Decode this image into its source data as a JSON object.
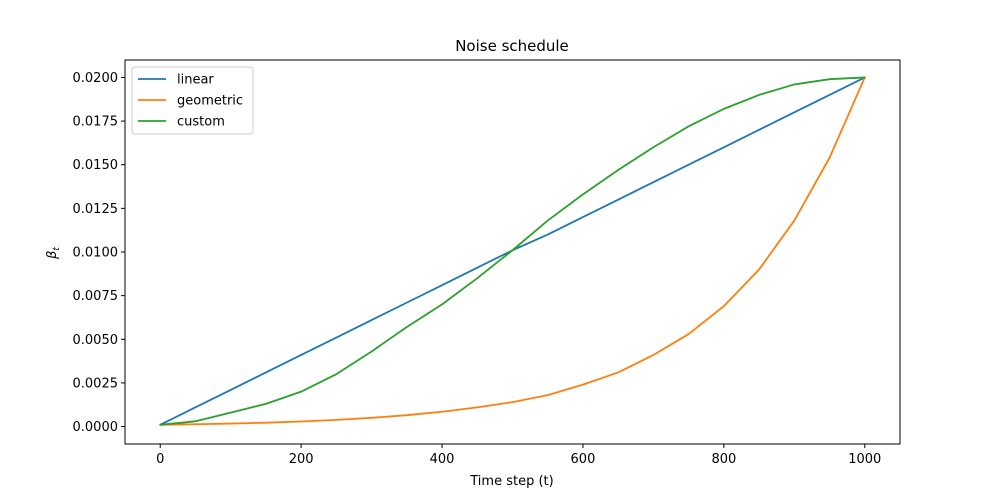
{
  "chart_data": {
    "type": "line",
    "title": "Noise schedule",
    "xlabel": "Time step (t)",
    "ylabel_base": "β",
    "ylabel_sub": "t",
    "xlim": [
      -50,
      1050
    ],
    "ylim": [
      -0.001,
      0.021
    ],
    "xticks": [
      0,
      200,
      400,
      600,
      800,
      1000
    ],
    "xtick_labels": [
      "0",
      "200",
      "400",
      "600",
      "800",
      "1000"
    ],
    "yticks": [
      0.0,
      0.0025,
      0.005,
      0.0075,
      0.01,
      0.0125,
      0.015,
      0.0175,
      0.02
    ],
    "ytick_labels": [
      "0.0000",
      "0.0025",
      "0.0050",
      "0.0075",
      "0.0100",
      "0.0125",
      "0.0150",
      "0.0175",
      "0.0200"
    ],
    "grid": false,
    "legend_position": "top-left",
    "x": [
      0,
      50,
      100,
      150,
      200,
      250,
      300,
      350,
      400,
      450,
      500,
      550,
      600,
      650,
      700,
      750,
      800,
      850,
      900,
      950,
      1000
    ],
    "series": [
      {
        "name": "linear",
        "color": "#1f77b4",
        "values": [
          0.0001,
          0.0011,
          0.0021,
          0.0031,
          0.0041,
          0.0051,
          0.0061,
          0.0071,
          0.0081,
          0.0091,
          0.0101,
          0.011,
          0.012,
          0.013,
          0.014,
          0.015,
          0.016,
          0.017,
          0.018,
          0.019,
          0.02
        ]
      },
      {
        "name": "geometric",
        "color": "#ff7f0e",
        "values": [
          0.0001,
          0.00013,
          0.00017,
          0.00022,
          0.00029,
          0.00038,
          0.0005,
          0.00065,
          0.00085,
          0.0011,
          0.0014,
          0.0018,
          0.0024,
          0.0031,
          0.0041,
          0.0053,
          0.0069,
          0.009,
          0.0118,
          0.0154,
          0.02
        ]
      },
      {
        "name": "custom",
        "color": "#2ca02c",
        "values": [
          0.0001,
          0.0003,
          0.0008,
          0.0013,
          0.002,
          0.003,
          0.0043,
          0.0057,
          0.007,
          0.0085,
          0.0101,
          0.0118,
          0.0133,
          0.0147,
          0.016,
          0.0172,
          0.0182,
          0.019,
          0.0196,
          0.0199,
          0.02
        ]
      }
    ]
  }
}
